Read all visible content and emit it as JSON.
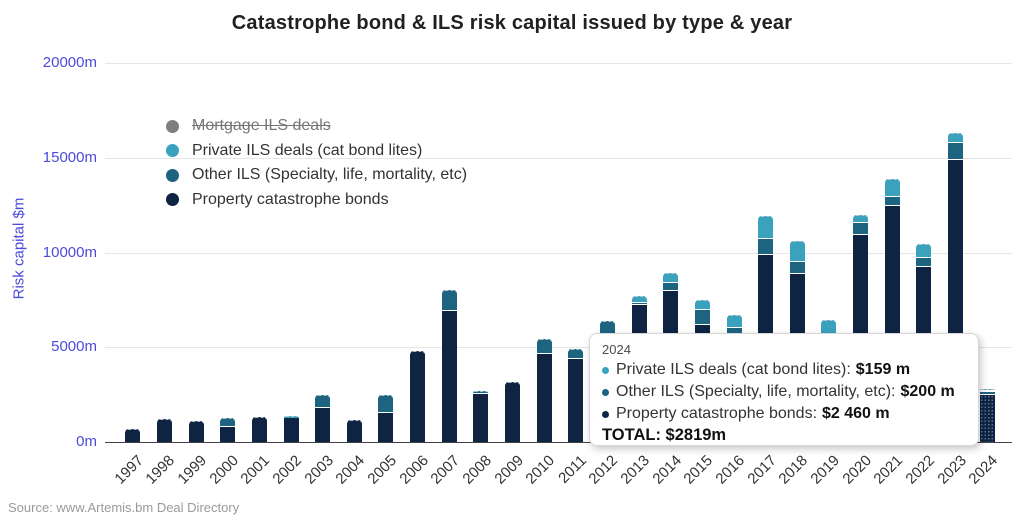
{
  "title": "Catastrophe bond & ILS risk capital issued by type & year",
  "source": "Source: www.Artemis.bm Deal Directory",
  "y_axis": {
    "title": "Risk capital $m"
  },
  "legend": [
    {
      "label": "Mortgage ILS deals",
      "color": "#7f7f7f",
      "disabled": true
    },
    {
      "label": "Private ILS deals (cat bond lites)",
      "color": "#3aa2bd",
      "disabled": false
    },
    {
      "label": "Other ILS (Specialty, life, mortality, etc)",
      "color": "#1d6480",
      "disabled": false
    },
    {
      "label": "Property catastrophe bonds",
      "color": "#0e2442",
      "disabled": false
    }
  ],
  "tooltip": {
    "year": "2024",
    "rows": [
      {
        "label": "Private ILS deals (cat bond lites):",
        "value": "$159 m",
        "color": "#3aa2bd"
      },
      {
        "label": "Other ILS (Specialty, life, mortality, etc):",
        "value": "$200 m",
        "color": "#1d6480"
      },
      {
        "label": "Property catastrophe bonds:",
        "value": "$2 460 m",
        "color": "#0e2442"
      }
    ],
    "total": "TOTAL: $2819m"
  },
  "chart_data": {
    "type": "bar",
    "stacked": true,
    "title": "Catastrophe bond & ILS risk capital issued by type & year",
    "xlabel": "",
    "ylabel": "Risk capital $m",
    "ylim": [
      0,
      20000
    ],
    "yticks": [
      0,
      5000,
      10000,
      15000,
      20000
    ],
    "ytick_labels": [
      "0m",
      "5000m",
      "10000m",
      "15000m",
      "20000m"
    ],
    "grid": true,
    "legend_position": "top-left-inside",
    "disabled_series": [
      "Mortgage ILS deals"
    ],
    "pattern_category": "2024",
    "categories": [
      "1997",
      "1998",
      "1999",
      "2000",
      "2001",
      "2002",
      "2003",
      "2004",
      "2005",
      "2006",
      "2007",
      "2008",
      "2009",
      "2010",
      "2011",
      "2012",
      "2013",
      "2014",
      "2015",
      "2016",
      "2017",
      "2018",
      "2019",
      "2020",
      "2021",
      "2022",
      "2023",
      "2024"
    ],
    "series": [
      {
        "name": "Property catastrophe bonds",
        "color": "#0e2442",
        "values": [
          700,
          1210,
          1090,
          800,
          1320,
          1280,
          1800,
          1160,
          1530,
          4800,
          6910,
          2530,
          3150,
          4640,
          4370,
          5700,
          7210,
          7950,
          6150,
          5610,
          9850,
          8870,
          5340,
          10920,
          12450,
          9230,
          14880,
          2460
        ]
      },
      {
        "name": "Other ILS (Specialty, life, mortality, etc)",
        "color": "#1d6480",
        "values": [
          0,
          0,
          0,
          470,
          0,
          0,
          660,
          0,
          950,
          0,
          1090,
          160,
          0,
          790,
          530,
          700,
          120,
          430,
          800,
          400,
          850,
          630,
          300,
          630,
          475,
          475,
          900,
          200
        ]
      },
      {
        "name": "Private ILS deals (cat bond lites)",
        "color": "#3aa2bd",
        "values": [
          0,
          0,
          0,
          0,
          0,
          90,
          0,
          0,
          0,
          0,
          0,
          0,
          0,
          0,
          0,
          0,
          370,
          530,
          550,
          690,
          1250,
          1110,
          800,
          420,
          950,
          740,
          530,
          159
        ]
      }
    ]
  }
}
